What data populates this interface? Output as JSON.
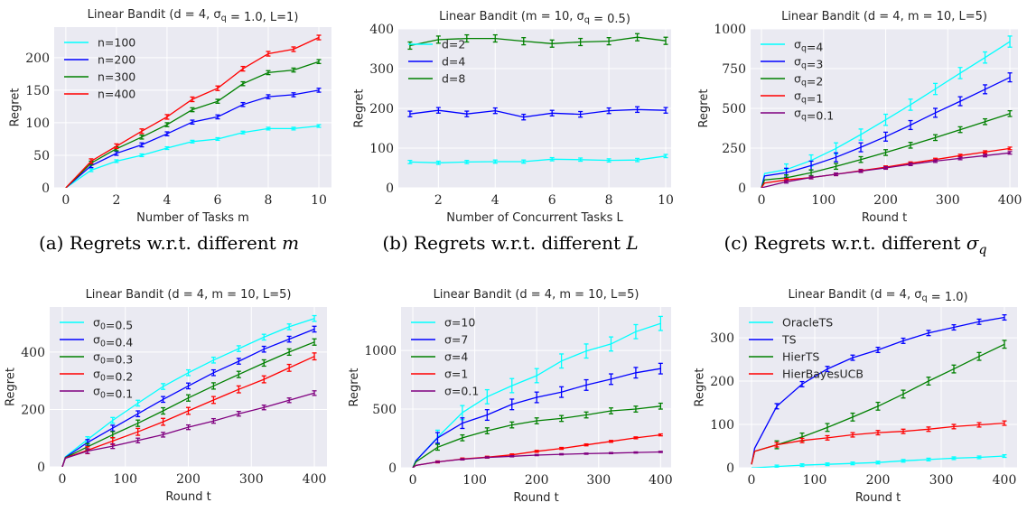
{
  "figure": {
    "captions": [
      {
        "text": "(a) Regrets w.r.t. different ",
        "symbol": "m",
        "sub": ""
      },
      {
        "text": "(b) Regrets w.r.t. different ",
        "symbol": "L",
        "sub": ""
      },
      {
        "text": "(c) Regrets w.r.t. different ",
        "symbol": "σ",
        "sub": "q"
      }
    ]
  },
  "colors": {
    "cyan": "#00FFFF",
    "blue": "#0000FF",
    "green": "#008000",
    "red": "#FF0000",
    "purple": "#800080",
    "background": "#EAEAF2",
    "grid": "#FFFFFF"
  },
  "chart_data": [
    {
      "type": "line",
      "title": "Linear Bandit (d = 4, σ_q = 1.0, L=1)",
      "xlabel": "Number of Tasks m",
      "ylabel": "Regret",
      "xlim": [
        -0.46,
        10.5
      ],
      "ylim": [
        0,
        247
      ],
      "xticks": [
        0,
        2,
        4,
        6,
        8,
        10
      ],
      "yticks": [
        0,
        50,
        100,
        150,
        200
      ],
      "grid": true,
      "legend": "top-left",
      "x": [
        0,
        1,
        2,
        3,
        4,
        5,
        6,
        7,
        8,
        9,
        10
      ],
      "series": [
        {
          "name": "n=100",
          "color": "#00FFFF",
          "err": 2,
          "values": [
            0,
            27,
            41,
            50,
            61,
            71,
            75,
            85,
            91,
            91,
            95
          ]
        },
        {
          "name": "n=200",
          "color": "#0000FF",
          "err": 3,
          "values": [
            0,
            34,
            53,
            66,
            83,
            101,
            109,
            128,
            140,
            143,
            150
          ]
        },
        {
          "name": "n=300",
          "color": "#008000",
          "err": 3,
          "values": [
            0,
            38,
            60,
            78,
            97,
            120,
            133,
            160,
            177,
            181,
            194
          ]
        },
        {
          "name": "n=400",
          "color": "#FF0000",
          "err": 3.5,
          "values": [
            0,
            41,
            64,
            87,
            109,
            136,
            153,
            183,
            206,
            213,
            231
          ]
        }
      ]
    },
    {
      "type": "line",
      "title": "Linear Bandit (m = 10, σ_q = 0.5)",
      "xlabel": "Number of Concurrent Tasks L",
      "ylabel": "Regret",
      "xlim": [
        0.59,
        10.19
      ],
      "ylim": [
        0,
        400
      ],
      "xticks": [
        2,
        4,
        6,
        8,
        10
      ],
      "yticks": [
        0,
        100,
        200,
        300,
        400
      ],
      "grid": true,
      "legend": "top-left",
      "x": [
        1,
        2,
        3,
        4,
        5,
        6,
        7,
        8,
        9,
        10
      ],
      "series": [
        {
          "name": "d=2",
          "color": "#00FFFF",
          "err": 4,
          "values": [
            65,
            63,
            65,
            66,
            66,
            72,
            71,
            69,
            70,
            80
          ]
        },
        {
          "name": "d=4",
          "color": "#0000FF",
          "err": 7,
          "values": [
            186,
            195,
            186,
            194,
            178,
            188,
            185,
            194,
            197,
            195
          ]
        },
        {
          "name": "d=8",
          "color": "#008000",
          "err": 9,
          "values": [
            358,
            373,
            376,
            376,
            369,
            363,
            367,
            369,
            379,
            370
          ]
        }
      ]
    },
    {
      "type": "line",
      "title": "Linear Bandit (d = 4, m = 10, L=5)",
      "xlabel": "Round t",
      "ylabel": "Regret",
      "xlim": [
        -17.5,
        413
      ],
      "ylim": [
        0,
        1000
      ],
      "xticks": [
        0,
        100,
        200,
        300,
        400
      ],
      "yticks": [
        0,
        250,
        500,
        750,
        1000
      ],
      "grid": true,
      "legend": "top-left",
      "x": [
        0,
        5,
        40,
        80,
        120,
        160,
        200,
        240,
        280,
        320,
        360,
        400
      ],
      "series": [
        {
          "name": "σ_q=4",
          "color": "#00FFFF",
          "err": 35,
          "values": [
            0,
            90,
            115,
            172,
            248,
            335,
            428,
            523,
            622,
            722,
            820,
            920
          ]
        },
        {
          "name": "σ_q=3",
          "color": "#0000FF",
          "err": 28,
          "values": [
            0,
            75,
            95,
            140,
            192,
            255,
            322,
            395,
            472,
            545,
            620,
            695
          ]
        },
        {
          "name": "σ_q=2",
          "color": "#008000",
          "err": 18,
          "values": [
            0,
            50,
            63,
            95,
            135,
            178,
            222,
            268,
            316,
            366,
            416,
            467
          ]
        },
        {
          "name": "σ_q=1",
          "color": "#FF0000",
          "err": 8,
          "values": [
            0,
            30,
            50,
            65,
            85,
            108,
            130,
            155,
            178,
            203,
            225,
            248
          ]
        },
        {
          "name": "σ_q=0.1",
          "color": "#800080",
          "err": 8,
          "values": [
            0,
            5,
            38,
            65,
            85,
            105,
            125,
            148,
            168,
            185,
            203,
            220
          ]
        }
      ]
    },
    {
      "type": "line",
      "title": "Linear Bandit (d = 4, m = 10, L=5)",
      "xlabel": "Round t",
      "ylabel": "Regret",
      "xlim": [
        -20,
        420
      ],
      "ylim": [
        0,
        557
      ],
      "xticks": [
        0,
        100,
        200,
        300,
        400
      ],
      "yticks": [
        0,
        200,
        400
      ],
      "grid": true,
      "legend": "top-left",
      "x": [
        0,
        5,
        40,
        80,
        120,
        160,
        200,
        240,
        280,
        320,
        360,
        400
      ],
      "series": [
        {
          "name": "σ_0=0.5",
          "color": "#00FFFF",
          "err": 10,
          "values": [
            0,
            35,
            95,
            162,
            222,
            280,
            328,
            372,
            412,
            452,
            488,
            517
          ]
        },
        {
          "name": "σ_0=0.4",
          "color": "#0000FF",
          "err": 10,
          "values": [
            0,
            33,
            85,
            135,
            185,
            235,
            282,
            328,
            368,
            410,
            445,
            480
          ]
        },
        {
          "name": "σ_0=0.3",
          "color": "#008000",
          "err": 11,
          "values": [
            0,
            32,
            70,
            112,
            152,
            195,
            240,
            282,
            322,
            362,
            400,
            435
          ]
        },
        {
          "name": "σ_0=0.2",
          "color": "#FF0000",
          "err": 12,
          "values": [
            0,
            31,
            58,
            90,
            122,
            157,
            195,
            233,
            270,
            305,
            345,
            385
          ]
        },
        {
          "name": "σ_0=0.1",
          "color": "#800080",
          "err": 8,
          "values": [
            0,
            30,
            55,
            72,
            92,
            112,
            138,
            160,
            185,
            207,
            232,
            257
          ]
        }
      ]
    },
    {
      "type": "line",
      "title": "Linear Bandit (d = 4, m = 10, L=5)",
      "xlabel": "Round t",
      "ylabel": "Regret",
      "xlim": [
        -19,
        417
      ],
      "ylim": [
        0,
        1370
      ],
      "xticks": [
        0,
        100,
        200,
        300,
        400
      ],
      "yticks": [
        0,
        500,
        1000
      ],
      "grid": true,
      "legend": "top-left",
      "x": [
        0,
        5,
        40,
        80,
        120,
        160,
        200,
        240,
        280,
        320,
        360,
        400
      ],
      "series": [
        {
          "name": "σ=10",
          "color": "#00FFFF",
          "err": 60,
          "values": [
            0,
            60,
            260,
            470,
            605,
            700,
            785,
            910,
            995,
            1055,
            1160,
            1230
          ]
        },
        {
          "name": "σ=7",
          "color": "#0000FF",
          "err": 45,
          "values": [
            0,
            60,
            255,
            380,
            450,
            540,
            600,
            645,
            705,
            755,
            810,
            845
          ]
        },
        {
          "name": "σ=4",
          "color": "#008000",
          "err": 25,
          "values": [
            0,
            50,
            175,
            255,
            315,
            365,
            400,
            420,
            450,
            485,
            500,
            525
          ]
        },
        {
          "name": "σ=1",
          "color": "#FF0000",
          "err": 8,
          "values": [
            0,
            20,
            50,
            75,
            90,
            110,
            140,
            165,
            195,
            225,
            255,
            280
          ]
        },
        {
          "name": "σ=0.1",
          "color": "#800080",
          "err": 5,
          "values": [
            0,
            20,
            50,
            72,
            88,
            98,
            108,
            115,
            120,
            125,
            130,
            135
          ]
        }
      ]
    },
    {
      "type": "line",
      "title": "Linear Bandit (d = 4, σ_q = 1.0)",
      "xlabel": "Round t",
      "ylabel": "Regret",
      "xlim": [
        -20,
        420
      ],
      "ylim": [
        0,
        371
      ],
      "xticks": [
        0,
        100,
        200,
        300,
        400
      ],
      "yticks": [
        0,
        100,
        200,
        300
      ],
      "grid": true,
      "legend": "top-left",
      "x": [
        0,
        5,
        40,
        80,
        120,
        160,
        200,
        240,
        280,
        320,
        360,
        400
      ],
      "series": [
        {
          "name": "OracleTS",
          "color": "#00FFFF",
          "err": 3,
          "values": [
            0,
            0,
            3,
            6,
            8,
            10,
            12,
            16,
            19,
            22,
            24,
            27
          ]
        },
        {
          "name": "TS",
          "color": "#0000FF",
          "err": 6,
          "values": [
            8,
            45,
            142,
            193,
            228,
            254,
            272,
            293,
            311,
            324,
            337,
            347
          ]
        },
        {
          "name": "HierTS",
          "color": "#008000",
          "err": 9,
          "values": [
            8,
            38,
            53,
            71,
            93,
            117,
            142,
            170,
            200,
            228,
            257,
            285
          ]
        },
        {
          "name": "HierBayesUCB",
          "color": "#FF0000",
          "err": 5,
          "values": [
            8,
            38,
            53,
            63,
            69,
            76,
            81,
            84,
            89,
            95,
            99,
            103
          ]
        }
      ]
    }
  ]
}
